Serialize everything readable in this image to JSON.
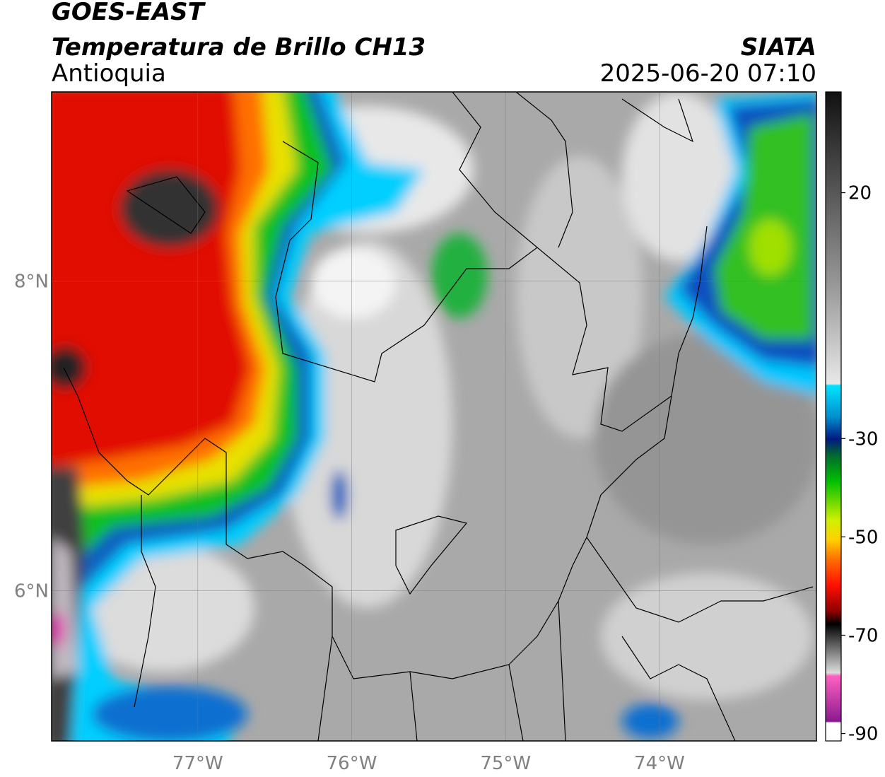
{
  "header": {
    "title": "GOES-EAST",
    "subtitle": "Temperatura de Brillo CH13",
    "region": "Antioquia",
    "source": "SIATA",
    "datetime": "2025-06-20 07:10"
  },
  "map": {
    "xlim": [
      -77.95,
      -72.98
    ],
    "ylim": [
      5.03,
      9.22
    ],
    "lat_ticks": [
      {
        "value": 8,
        "label": "8°N"
      },
      {
        "value": 6,
        "label": "6°N"
      }
    ],
    "lon_ticks": [
      {
        "value": -77,
        "label": "77°W"
      },
      {
        "value": -76,
        "label": "76°W"
      },
      {
        "value": -75,
        "label": "75°W"
      },
      {
        "value": -74,
        "label": "74°W"
      }
    ]
  },
  "colorbar": {
    "limits": [
      -91.5,
      40.5
    ],
    "ticks": [
      20,
      -30,
      -50,
      -70,
      -90
    ]
  }
}
